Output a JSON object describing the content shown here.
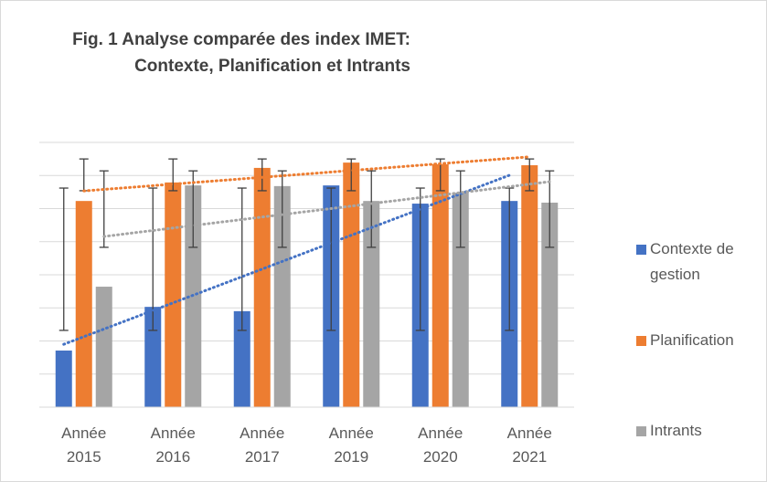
{
  "chart_data": {
    "type": "bar",
    "title": "Fig. 1 Analyse comparée des index IMET: Contexte, Planification et Intrants",
    "categories": [
      "Année 2015",
      "Année 2016",
      "Année 2017",
      "Année 2019",
      "Année 2020",
      "Année 2021"
    ],
    "series": [
      {
        "name": "Contexte de gestion",
        "color": "#4472c4",
        "values": [
          17.1,
          30.3,
          29,
          67,
          61.5,
          62.3
        ],
        "error_low": [
          23.2,
          23.2,
          23.2,
          23.2,
          23.2,
          23.2
        ],
        "error_high": [
          66.2,
          66.2,
          66.2,
          66.2,
          66.2,
          66.2
        ]
      },
      {
        "name": "Planification",
        "color": "#ed7d31",
        "values": [
          62.3,
          67.9,
          72.3,
          73.9,
          73.4,
          73.1
        ],
        "error_low": [
          65.4,
          65.4,
          65.4,
          65.4,
          65.4,
          65.4
        ],
        "error_high": [
          75,
          75,
          75,
          75,
          75,
          75
        ]
      },
      {
        "name": "Intrants",
        "color": "#a5a5a5",
        "values": [
          36.4,
          67,
          66.8,
          62.3,
          64.8,
          61.8
        ],
        "error_low": [
          48.3,
          48.3,
          48.3,
          48.3,
          48.3,
          48.3
        ],
        "error_high": [
          71.4,
          71.4,
          71.4,
          71.4,
          71.4,
          71.4
        ]
      }
    ],
    "ylim": [
      0,
      80
    ],
    "yticks": [
      0,
      10,
      20,
      30,
      40,
      50,
      60,
      70,
      80
    ],
    "grid": true,
    "trendline": true,
    "legend": "right"
  }
}
